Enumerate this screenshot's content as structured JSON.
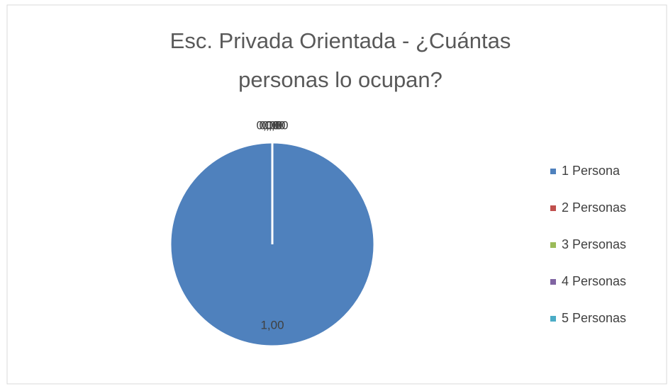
{
  "chart_data": {
    "type": "pie",
    "title": [
      "Esc. Privada Orientada - ¿Cuántas",
      "personas lo ocupan?"
    ],
    "categories": [
      "1 Persona",
      "2 Personas",
      "3 Personas",
      "4 Personas",
      "5 Personas"
    ],
    "values": [
      1,
      0,
      0,
      0,
      0
    ],
    "value_labels": [
      "1,00",
      "0,00",
      "0,00",
      "0,00",
      "0,00"
    ],
    "colors": [
      "#4f81bd",
      "#c0504d",
      "#9bbb59",
      "#8064a2",
      "#4bacc6"
    ],
    "legend": "right"
  }
}
